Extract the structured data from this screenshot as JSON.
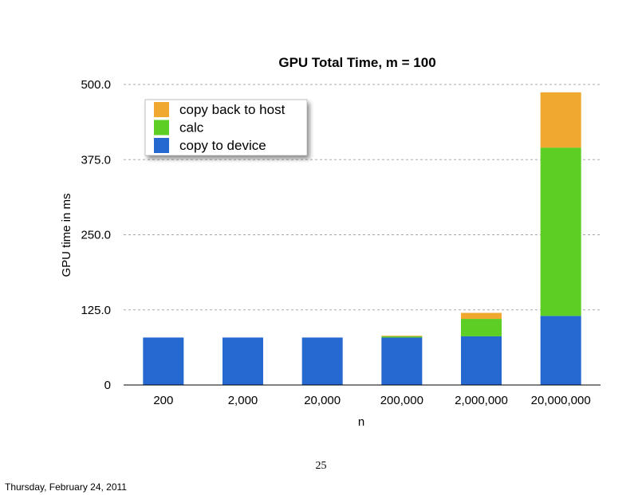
{
  "chart_data": {
    "type": "bar",
    "stacked": true,
    "title": "GPU Total Time, m = 100",
    "xlabel": "n",
    "ylabel": "GPU time in ms",
    "categories": [
      "200",
      "2,000",
      "20,000",
      "200,000",
      "2,000,000",
      "20,000,000"
    ],
    "series": [
      {
        "name": "copy to device",
        "color": "#2468D0",
        "values": [
          79,
          79,
          79,
          79,
          81,
          115
        ]
      },
      {
        "name": "calc",
        "color": "#5CCE24",
        "values": [
          0,
          0,
          0,
          2,
          29,
          280
        ]
      },
      {
        "name": "copy back to host",
        "color": "#F0A830",
        "values": [
          0,
          0,
          0,
          1,
          10,
          92
        ]
      }
    ],
    "ylim": [
      0,
      500
    ],
    "yticks": [
      "0",
      "125.0",
      "250.0",
      "375.0",
      "500.0"
    ],
    "ytick_values": [
      0,
      125,
      250,
      375,
      500
    ],
    "grid": true,
    "legend_position": "top-left"
  },
  "footer": {
    "page_number": "25",
    "date": "Thursday, February 24, 2011"
  }
}
